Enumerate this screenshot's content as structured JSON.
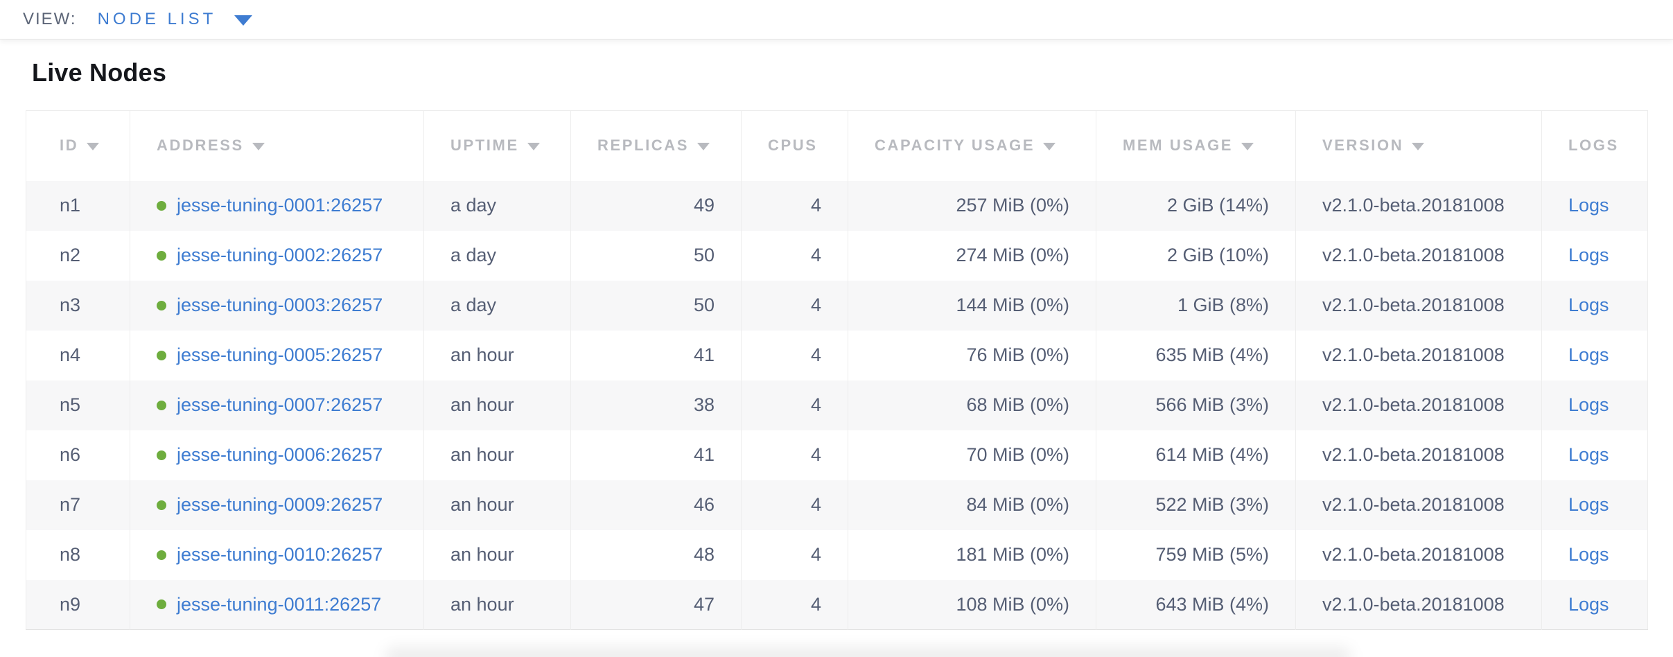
{
  "view_bar": {
    "label": "VIEW:",
    "selected": "NODE LIST"
  },
  "page": {
    "title": "Live Nodes"
  },
  "table": {
    "columns": [
      {
        "key": "id",
        "label": "ID",
        "sortable": true,
        "align": "left"
      },
      {
        "key": "address",
        "label": "ADDRESS",
        "sortable": true,
        "align": "left"
      },
      {
        "key": "uptime",
        "label": "UPTIME",
        "sortable": true,
        "align": "left"
      },
      {
        "key": "replicas",
        "label": "REPLICAS",
        "sortable": true,
        "align": "right"
      },
      {
        "key": "cpus",
        "label": "CPUS",
        "sortable": false,
        "align": "right"
      },
      {
        "key": "capacity",
        "label": "CAPACITY USAGE",
        "sortable": true,
        "align": "right"
      },
      {
        "key": "mem",
        "label": "MEM USAGE",
        "sortable": true,
        "align": "right"
      },
      {
        "key": "version",
        "label": "VERSION",
        "sortable": true,
        "align": "left"
      },
      {
        "key": "logs",
        "label": "LOGS",
        "sortable": false,
        "align": "left"
      }
    ],
    "rows": [
      {
        "id": "n1",
        "status": "healthy",
        "address": "jesse-tuning-0001:26257",
        "uptime": "a day",
        "replicas": "49",
        "cpus": "4",
        "capacity": "257 MiB (0%)",
        "mem": "2 GiB (14%)",
        "version": "v2.1.0-beta.20181008",
        "logs": "Logs"
      },
      {
        "id": "n2",
        "status": "healthy",
        "address": "jesse-tuning-0002:26257",
        "uptime": "a day",
        "replicas": "50",
        "cpus": "4",
        "capacity": "274 MiB (0%)",
        "mem": "2 GiB (10%)",
        "version": "v2.1.0-beta.20181008",
        "logs": "Logs"
      },
      {
        "id": "n3",
        "status": "healthy",
        "address": "jesse-tuning-0003:26257",
        "uptime": "a day",
        "replicas": "50",
        "cpus": "4",
        "capacity": "144 MiB (0%)",
        "mem": "1 GiB (8%)",
        "version": "v2.1.0-beta.20181008",
        "logs": "Logs"
      },
      {
        "id": "n4",
        "status": "healthy",
        "address": "jesse-tuning-0005:26257",
        "uptime": "an hour",
        "replicas": "41",
        "cpus": "4",
        "capacity": "76 MiB (0%)",
        "mem": "635 MiB (4%)",
        "version": "v2.1.0-beta.20181008",
        "logs": "Logs"
      },
      {
        "id": "n5",
        "status": "healthy",
        "address": "jesse-tuning-0007:26257",
        "uptime": "an hour",
        "replicas": "38",
        "cpus": "4",
        "capacity": "68 MiB (0%)",
        "mem": "566 MiB (3%)",
        "version": "v2.1.0-beta.20181008",
        "logs": "Logs"
      },
      {
        "id": "n6",
        "status": "healthy",
        "address": "jesse-tuning-0006:26257",
        "uptime": "an hour",
        "replicas": "41",
        "cpus": "4",
        "capacity": "70 MiB (0%)",
        "mem": "614 MiB (4%)",
        "version": "v2.1.0-beta.20181008",
        "logs": "Logs"
      },
      {
        "id": "n7",
        "status": "healthy",
        "address": "jesse-tuning-0009:26257",
        "uptime": "an hour",
        "replicas": "46",
        "cpus": "4",
        "capacity": "84 MiB (0%)",
        "mem": "522 MiB (3%)",
        "version": "v2.1.0-beta.20181008",
        "logs": "Logs"
      },
      {
        "id": "n8",
        "status": "healthy",
        "address": "jesse-tuning-0010:26257",
        "uptime": "an hour",
        "replicas": "48",
        "cpus": "4",
        "capacity": "181 MiB (0%)",
        "mem": "759 MiB (5%)",
        "version": "v2.1.0-beta.20181008",
        "logs": "Logs"
      },
      {
        "id": "n9",
        "status": "healthy",
        "address": "jesse-tuning-0011:26257",
        "uptime": "an hour",
        "replicas": "47",
        "cpus": "4",
        "capacity": "108 MiB (0%)",
        "mem": "643 MiB (4%)",
        "version": "v2.1.0-beta.20181008",
        "logs": "Logs"
      }
    ]
  },
  "colors": {
    "link_blue": "#3e7cd1",
    "healthy_green": "#6ead3e",
    "header_gray": "#b8babf",
    "cell_text": "#555e74",
    "view_label_gray": "#5c6577",
    "row_stripe": "#f7f7f8",
    "border_color": "#ededed",
    "title_color": "#15171c"
  }
}
